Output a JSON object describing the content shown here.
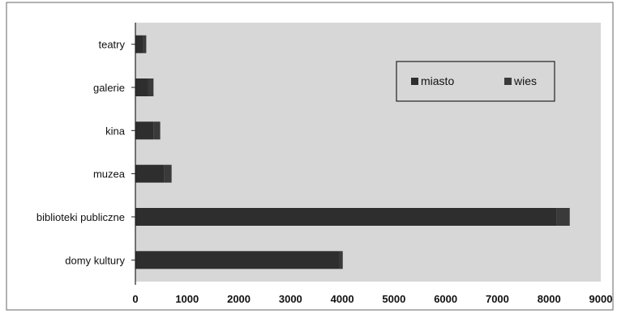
{
  "chart_data": {
    "type": "bar",
    "orientation": "horizontal",
    "stacked": true,
    "categories": [
      "teatry",
      "galerie",
      "kina",
      "muzea",
      "biblioteki publiczne",
      "domy kultury"
    ],
    "series": [
      {
        "name": "miasto",
        "values": [
          150,
          250,
          350,
          550,
          8150,
          3950
        ]
      },
      {
        "name": "wies",
        "values": [
          60,
          100,
          130,
          150,
          250,
          60
        ]
      }
    ],
    "xlim": [
      0,
      9000
    ],
    "xticks": [
      "0",
      "1000",
      "2000",
      "3000",
      "4000",
      "5000",
      "6000",
      "7000",
      "8000",
      "9000"
    ],
    "title": "",
    "xlabel": "",
    "ylabel": "",
    "legend_position": "top-right",
    "grid": false,
    "colors": {
      "plot_background": "#d7d7d7",
      "series": [
        "#2e2e2e",
        "#3a3a3a"
      ],
      "axis": "#222222",
      "frame": "#555555"
    }
  }
}
